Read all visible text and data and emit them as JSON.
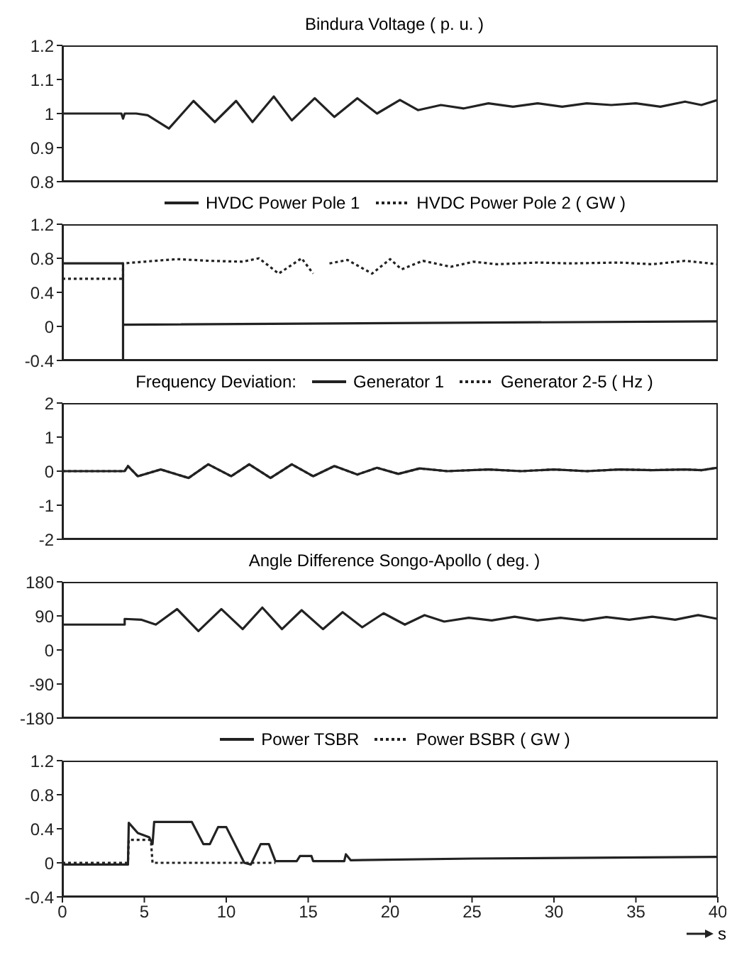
{
  "chart_data": [
    {
      "type": "line",
      "title": "Bindura Voltage  ( p. u. )",
      "xlim": [
        0,
        40
      ],
      "xticks": [
        0,
        5,
        10,
        15,
        20,
        25,
        30,
        35,
        40
      ],
      "ylim": [
        0.8,
        1.2
      ],
      "yticks": [
        0.8,
        0.9,
        1,
        1.1,
        1.2
      ],
      "tick_labels": "y",
      "marker": "none",
      "series": [
        {
          "color": "#222222",
          "line_style": "solid",
          "x": [
            0,
            1,
            2,
            3,
            3.6,
            3.7,
            3.8,
            4.5,
            5.2,
            6.5,
            8.0,
            9.3,
            10.6,
            11.6,
            12.9,
            14.0,
            15.4,
            16.6,
            18.0,
            19.2,
            20.6,
            21.7,
            23.1,
            24.5,
            26,
            27.5,
            29,
            30.5,
            32,
            33.5,
            35,
            36.5,
            38,
            39,
            40
          ],
          "values": [
            1.0,
            1.0,
            1.0,
            1.0,
            1.0,
            0.985,
            1.0,
            1.0,
            0.995,
            0.956,
            1.037,
            0.975,
            1.037,
            0.975,
            1.05,
            0.98,
            1.045,
            0.99,
            1.045,
            1.0,
            1.04,
            1.01,
            1.025,
            1.015,
            1.03,
            1.02,
            1.03,
            1.02,
            1.03,
            1.025,
            1.03,
            1.02,
            1.035,
            1.025,
            1.04
          ]
        }
      ]
    },
    {
      "type": "line",
      "legend": "top",
      "xlim": [
        0,
        40
      ],
      "xticks": [
        0,
        5,
        10,
        15,
        20,
        25,
        30,
        35,
        40
      ],
      "ylim": [
        -0.4,
        1.2
      ],
      "yticks": [
        -0.4,
        0,
        0.4,
        0.8,
        1.2
      ],
      "tick_labels": "y",
      "marker": "none",
      "series": [
        {
          "name": "HVDC Power Pole 1",
          "color": "#222222",
          "line_style": "solid",
          "x": [
            0,
            3.7,
            3.7,
            3.7,
            40
          ],
          "values": [
            0.74,
            0.74,
            -0.4,
            0.02,
            0.06
          ]
        },
        {
          "name": "HVDC Power Pole 2  ( GW )",
          "color": "#222222",
          "line_style": "dotted",
          "x": [
            0,
            3.7,
            3.7,
            5,
            7,
            9,
            11,
            12,
            13.2,
            14.6,
            15.3,
            15.8,
            16.3,
            17.4,
            18.9,
            20,
            20.7,
            22,
            23.7,
            25.1,
            26.5,
            29,
            31,
            34,
            36,
            38,
            40
          ],
          "values": [
            0.56,
            0.56,
            0.74,
            0.76,
            0.79,
            0.77,
            0.76,
            0.8,
            0.62,
            0.8,
            0.62,
            null,
            0.74,
            0.78,
            0.62,
            0.79,
            0.67,
            0.77,
            0.7,
            0.76,
            0.73,
            0.75,
            0.74,
            0.75,
            0.73,
            0.77,
            0.73
          ]
        }
      ]
    },
    {
      "type": "line",
      "title": "Frequency Deviation:",
      "legend": "top",
      "xlim": [
        0,
        40
      ],
      "xticks": [
        0,
        5,
        10,
        15,
        20,
        25,
        30,
        35,
        40
      ],
      "ylim": [
        -2,
        2
      ],
      "yticks": [
        -2,
        -1,
        0,
        1,
        2
      ],
      "tick_labels": "y",
      "marker": "none",
      "series": [
        {
          "name": "Generator 1",
          "color": "#222222",
          "line_style": "solid",
          "x": [
            0,
            3.8,
            4.0,
            4.6,
            6.0,
            7.7,
            8.9,
            10.3,
            11.4,
            12.7,
            14.0,
            15.3,
            16.6,
            18.0,
            19.2,
            20.5,
            21.8,
            23.5,
            26,
            28,
            30,
            32,
            34,
            36,
            38,
            39,
            40
          ],
          "values": [
            0,
            0,
            0.15,
            -0.15,
            0.05,
            -0.2,
            0.2,
            -0.15,
            0.2,
            -0.2,
            0.2,
            -0.15,
            0.15,
            -0.1,
            0.1,
            -0.08,
            0.08,
            0,
            0.05,
            0,
            0.05,
            0,
            0.05,
            0.03,
            0.05,
            0.03,
            0.1
          ]
        },
        {
          "name": "Generator 2-5  ( Hz )",
          "color": "#222222",
          "line_style": "dotted",
          "x": [
            0,
            3.8,
            4.0,
            4.6,
            6.0,
            7.7,
            8.9,
            10.3,
            11.4,
            12.7,
            14.0,
            15.3,
            16.6,
            18.0,
            19.2,
            20.5,
            21.8,
            23.5,
            26,
            28,
            30,
            32,
            34,
            36,
            38,
            39,
            40
          ],
          "values": [
            0,
            0,
            0.15,
            -0.15,
            0.05,
            -0.2,
            0.2,
            -0.15,
            0.2,
            -0.2,
            0.2,
            -0.15,
            0.15,
            -0.1,
            0.1,
            -0.08,
            0.08,
            0,
            0.05,
            0,
            0.05,
            0,
            0.05,
            0.03,
            0.05,
            0.03,
            0.1
          ]
        }
      ]
    },
    {
      "type": "line",
      "title": "Angle Difference Songo-Apollo  ( deg. )",
      "xlim": [
        0,
        40
      ],
      "xticks": [
        0,
        5,
        10,
        15,
        20,
        25,
        30,
        35,
        40
      ],
      "ylim": [
        -180,
        180
      ],
      "yticks": [
        -180,
        -90,
        0,
        90,
        180
      ],
      "tick_labels": "y",
      "marker": "none",
      "series": [
        {
          "color": "#222222",
          "line_style": "solid",
          "x": [
            0,
            3.8,
            3.8,
            4.8,
            5.7,
            7.0,
            8.3,
            9.7,
            11.0,
            12.2,
            13.4,
            14.6,
            15.9,
            17.1,
            18.3,
            19.6,
            20.9,
            22.1,
            23.3,
            24.8,
            26.2,
            27.6,
            29,
            30.4,
            31.8,
            33.2,
            34.6,
            36,
            37.4,
            38.8,
            40
          ],
          "values": [
            67,
            67,
            82,
            80,
            67,
            108,
            50,
            108,
            55,
            112,
            55,
            105,
            55,
            100,
            60,
            97,
            67,
            92,
            75,
            85,
            78,
            88,
            78,
            85,
            78,
            87,
            80,
            88,
            80,
            92,
            82
          ]
        }
      ]
    },
    {
      "type": "line",
      "legend": "top",
      "xlabel": "s",
      "xlim": [
        0,
        40
      ],
      "xticks": [
        0,
        5,
        10,
        15,
        20,
        25,
        30,
        35,
        40
      ],
      "ylim": [
        -0.4,
        1.2
      ],
      "yticks": [
        -0.4,
        0,
        0.4,
        0.8,
        1.2
      ],
      "marker": "none",
      "series": [
        {
          "name": "Power TSBR",
          "color": "#222222",
          "line_style": "solid",
          "x": [
            0,
            4.0,
            4.05,
            4.6,
            5.3,
            5.5,
            5.6,
            7.9,
            8.6,
            9.0,
            9.5,
            10.0,
            11.1,
            11.5,
            12.1,
            12.6,
            13.0,
            14.3,
            14.5,
            15.2,
            15.3,
            17.2,
            17.3,
            17.6,
            25,
            40
          ],
          "values": [
            -0.02,
            -0.02,
            0.47,
            0.35,
            0.3,
            0.22,
            0.48,
            0.48,
            0.22,
            0.22,
            0.42,
            0.42,
            0.0,
            -0.02,
            0.22,
            0.22,
            0.02,
            0.02,
            0.08,
            0.08,
            0.02,
            0.02,
            0.1,
            0.03,
            0.05,
            0.07
          ]
        },
        {
          "name": "Power BSBR  ( GW )",
          "color": "#222222",
          "line_style": "dotted",
          "x": [
            0,
            4.0,
            4.05,
            5.4,
            5.5,
            13
          ],
          "values": [
            0,
            0,
            0.27,
            0.27,
            0,
            0
          ]
        }
      ]
    }
  ]
}
